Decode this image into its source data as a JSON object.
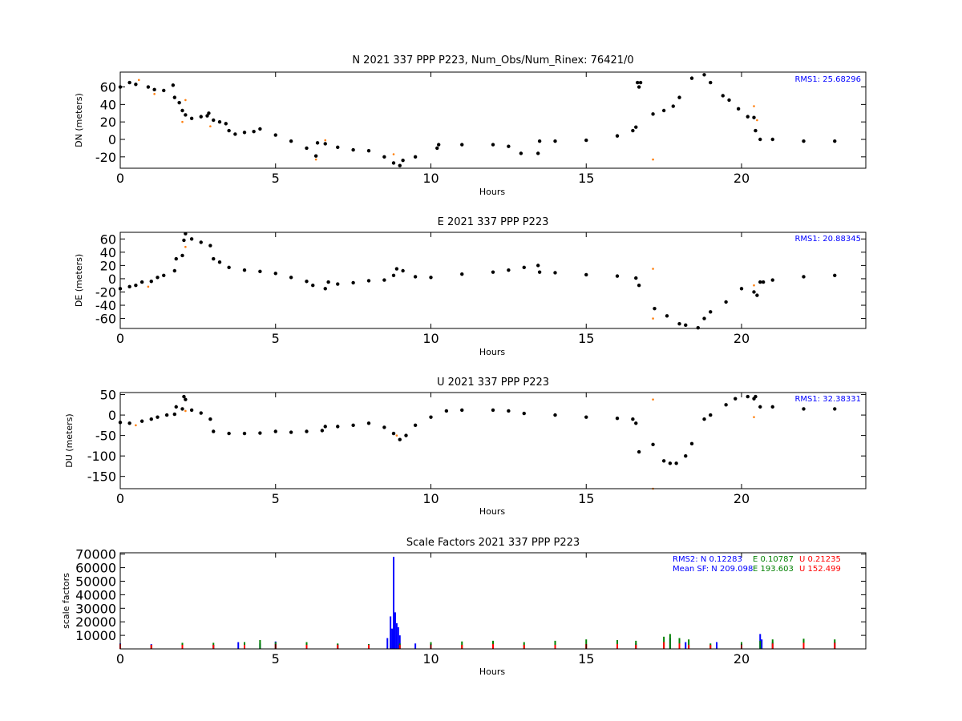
{
  "chart_data": [
    {
      "type": "scatter",
      "title": "N 2021 337 PPP  P223, Num_Obs/Num_Rinex: 76421/0",
      "xlabel": "Hours",
      "ylabel": "DN (meters)",
      "xlim": [
        0,
        24
      ],
      "ylim": [
        -33,
        77
      ],
      "xticks": [
        0,
        5,
        10,
        15,
        20
      ],
      "yticks": [
        -20,
        0,
        20,
        40,
        60
      ],
      "annotation": {
        "text": "RMS1: 25.68296",
        "color": "#0000ff"
      },
      "series": [
        {
          "color": "#000000",
          "x": [
            0,
            0.3,
            0.5,
            0.9,
            1.1,
            1.4,
            1.7,
            1.75,
            1.9,
            2.0,
            2.1,
            2.3,
            2.6,
            2.8,
            2.85,
            3.0,
            3.2,
            3.4,
            3.5,
            3.7,
            4.0,
            4.3,
            4.5,
            5.0,
            5.5,
            6.0,
            6.3,
            6.35,
            6.6,
            7.0,
            7.5,
            8.0,
            8.5,
            8.8,
            9.0,
            9.1,
            9.5,
            10.2,
            10.25,
            11.0,
            12.0,
            12.5,
            12.9,
            13.45,
            13.5,
            14.0,
            15.0,
            16.0,
            16.5,
            16.6,
            16.65,
            16.7,
            16.75,
            17.15,
            17.5,
            17.8,
            18.0,
            18.4,
            18.8,
            19.0,
            19.4,
            19.6,
            19.9,
            20.2,
            20.4,
            20.45,
            20.6,
            21.0,
            22.0,
            23.0
          ],
          "y": [
            60,
            65,
            63,
            60,
            57,
            56,
            62,
            48,
            42,
            33,
            28,
            24,
            26,
            27,
            30,
            22,
            20,
            18,
            10,
            6,
            8,
            9,
            12,
            5,
            -2,
            -10,
            -19,
            -4,
            -5,
            -9,
            -12,
            -13,
            -20,
            -27,
            -30,
            -24,
            -20,
            -10,
            -6,
            -6,
            -6,
            -8,
            -16,
            -16,
            -2,
            -2,
            -1,
            4,
            10,
            14,
            65,
            60,
            65,
            29,
            33,
            38,
            48,
            70,
            74,
            65,
            50,
            45,
            35,
            26,
            25,
            10,
            0,
            0,
            -2,
            -2
          ]
        },
        {
          "color": "#ff7f0e",
          "x": [
            0.6,
            1.1,
            2.0,
            2.1,
            2.9,
            6.3,
            6.6,
            8.8,
            17.15,
            20.4,
            20.5
          ],
          "y": [
            68,
            52,
            20,
            45,
            15,
            -23,
            -1,
            -17,
            -23,
            38,
            22
          ]
        }
      ]
    },
    {
      "type": "scatter",
      "title": "E 2021 337 PPP  P223",
      "xlabel": "Hours",
      "ylabel": "DE (meters)",
      "xlim": [
        0,
        24
      ],
      "ylim": [
        -75,
        70
      ],
      "xticks": [
        0,
        5,
        10,
        15,
        20
      ],
      "yticks": [
        -60,
        -40,
        -20,
        0,
        20,
        40,
        60
      ],
      "annotation": {
        "text": "RMS1: 20.88345",
        "color": "#0000ff"
      },
      "series": [
        {
          "color": "#000000",
          "x": [
            0,
            0.3,
            0.5,
            0.7,
            1.0,
            1.2,
            1.4,
            1.75,
            1.8,
            2.0,
            2.05,
            2.1,
            2.3,
            2.6,
            2.9,
            3.0,
            3.2,
            3.5,
            4.0,
            4.5,
            5.0,
            5.5,
            6.0,
            6.2,
            6.6,
            6.7,
            7.0,
            7.5,
            8.0,
            8.5,
            8.8,
            8.9,
            9.1,
            9.5,
            10.0,
            11.0,
            12.0,
            12.5,
            13.0,
            13.45,
            13.5,
            14.0,
            15.0,
            16.0,
            16.6,
            16.7,
            17.2,
            17.6,
            18.0,
            18.2,
            18.6,
            18.8,
            19.0,
            19.5,
            20.0,
            20.4,
            20.5,
            20.6,
            20.7,
            21.0,
            22.0,
            23.0
          ],
          "y": [
            -15,
            -12,
            -10,
            -5,
            -4,
            2,
            5,
            12,
            30,
            35,
            58,
            68,
            60,
            55,
            50,
            30,
            25,
            17,
            13,
            11,
            8,
            2,
            -4,
            -10,
            -15,
            -5,
            -8,
            -6,
            -3,
            -2,
            5,
            15,
            12,
            3,
            2,
            7,
            10,
            13,
            17,
            20,
            10,
            9,
            6,
            4,
            1,
            -10,
            -45,
            -56,
            -68,
            -70,
            -74,
            -60,
            -50,
            -35,
            -15,
            -20,
            -25,
            -5,
            -5,
            -2,
            3,
            5
          ]
        },
        {
          "color": "#ff7f0e",
          "x": [
            0.9,
            2.1,
            17.15,
            17.15,
            20.4
          ],
          "y": [
            -12,
            48,
            15,
            -60,
            -10
          ]
        }
      ]
    },
    {
      "type": "scatter",
      "title": "U 2021 337 PPP  P223",
      "xlabel": "Hours",
      "ylabel": "DU (meters)",
      "xlim": [
        0,
        24
      ],
      "ylim": [
        -180,
        55
      ],
      "xticks": [
        0,
        5,
        10,
        15,
        20
      ],
      "yticks": [
        -150,
        -100,
        -50,
        0,
        50
      ],
      "annotation": {
        "text": "RMS1: 32.38331",
        "color": "#0000ff"
      },
      "series": [
        {
          "color": "#000000",
          "x": [
            0,
            0.3,
            0.7,
            1.0,
            1.2,
            1.5,
            1.75,
            1.8,
            2.0,
            2.05,
            2.1,
            2.3,
            2.6,
            2.9,
            3.0,
            3.5,
            4.0,
            4.5,
            5.0,
            5.5,
            6.0,
            6.5,
            6.6,
            7.0,
            7.5,
            8.0,
            8.5,
            8.8,
            9.0,
            9.2,
            9.5,
            10.0,
            10.5,
            11.0,
            12.0,
            12.5,
            13.0,
            14.0,
            15.0,
            16.0,
            16.5,
            16.6,
            16.7,
            17.15,
            17.5,
            17.7,
            17.9,
            18.2,
            18.4,
            18.8,
            19.0,
            19.5,
            19.8,
            20.2,
            20.4,
            20.45,
            20.6,
            21.0,
            22.0,
            23.0
          ],
          "y": [
            -18,
            -20,
            -15,
            -10,
            -5,
            0,
            2,
            20,
            15,
            45,
            38,
            12,
            5,
            -10,
            -40,
            -45,
            -45,
            -44,
            -40,
            -42,
            -40,
            -38,
            -28,
            -28,
            -25,
            -20,
            -30,
            -45,
            -60,
            -50,
            -25,
            -5,
            10,
            12,
            12,
            10,
            4,
            0,
            -5,
            -8,
            -10,
            -20,
            -90,
            -72,
            -112,
            -118,
            -118,
            -100,
            -70,
            -10,
            0,
            25,
            40,
            45,
            40,
            45,
            20,
            20,
            15,
            15
          ]
        },
        {
          "color": "#ff7f0e",
          "x": [
            0.5,
            2.1,
            8.9,
            17.15,
            17.15,
            20.4
          ],
          "y": [
            -25,
            10,
            -50,
            38,
            -180,
            -5
          ]
        }
      ]
    },
    {
      "type": "scatter",
      "title": "Scale Factors 2021 337 PPP  P223",
      "xlabel": "Hours",
      "ylabel": "scale factors",
      "xlim": [
        0,
        24
      ],
      "ylim": [
        0,
        71000
      ],
      "xticks": [
        0,
        5,
        10,
        15,
        20
      ],
      "yticks": [
        10000,
        20000,
        30000,
        40000,
        50000,
        60000,
        70000
      ],
      "annotations": [
        {
          "text": "RMS2: N  0.12283",
          "color": "#0000ff"
        },
        {
          "text": "E  0.10787",
          "color": "#008000"
        },
        {
          "text": "U  0.21235",
          "color": "#ff0000"
        },
        {
          "text": "Mean SF: N 209.098",
          "color": "#0000ff"
        },
        {
          "text": "E 193.603",
          "color": "#008000"
        },
        {
          "text": "U 152.499",
          "color": "#ff0000"
        }
      ],
      "series": [
        {
          "name": "N",
          "color": "#0000ff",
          "x": [
            0,
            1,
            2,
            3,
            3.8,
            4.5,
            5,
            6,
            7,
            8,
            8.6,
            8.7,
            8.75,
            8.8,
            8.85,
            8.9,
            8.95,
            9.0,
            9.5,
            10,
            12,
            14,
            16,
            16.6,
            17.7,
            18.2,
            19.2,
            20.6,
            20.65,
            21,
            23
          ],
          "y": [
            4000,
            3500,
            3000,
            3000,
            5000,
            4000,
            5500,
            4000,
            3500,
            3500,
            8000,
            24000,
            15000,
            68000,
            27000,
            19000,
            16000,
            10000,
            4000,
            4000,
            5000,
            5500,
            5000,
            4000,
            8000,
            5000,
            5000,
            11000,
            7000,
            5000,
            5000
          ]
        },
        {
          "name": "E",
          "color": "#008000",
          "x": [
            0,
            1,
            2,
            3,
            4,
            4.5,
            5,
            6,
            7,
            8,
            9,
            10,
            11,
            12,
            13,
            14,
            15,
            16,
            16.6,
            17.5,
            17.7,
            18.0,
            18.3,
            19,
            20,
            20.6,
            21,
            22,
            23
          ],
          "y": [
            3000,
            3000,
            4500,
            4500,
            5000,
            6500,
            5000,
            5000,
            4000,
            3500,
            4000,
            5000,
            5500,
            6000,
            5000,
            6000,
            7000,
            6500,
            6000,
            9000,
            11000,
            8000,
            7000,
            4000,
            5000,
            6000,
            7000,
            7500,
            7000
          ]
        },
        {
          "name": "U",
          "color": "#ff0000",
          "x": [
            0,
            1,
            2,
            3,
            4,
            5,
            6,
            7,
            8,
            9,
            10,
            11,
            12,
            13,
            14,
            15,
            16,
            16.6,
            17.5,
            18.0,
            18.3,
            19,
            20,
            21,
            22,
            23
          ],
          "y": [
            3500,
            3000,
            3000,
            3000,
            3000,
            3500,
            3000,
            3000,
            3000,
            3000,
            3000,
            3000,
            3500,
            3000,
            3000,
            3500,
            3500,
            3000,
            5000,
            4000,
            3000,
            3000,
            3000,
            4000,
            4500,
            4500
          ]
        }
      ]
    }
  ]
}
